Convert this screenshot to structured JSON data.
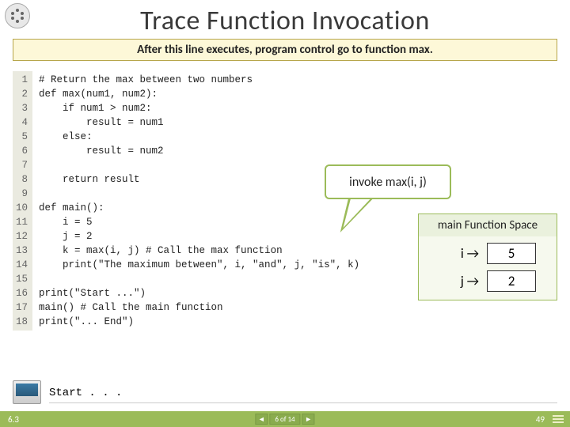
{
  "title": "Trace Function Invocation",
  "subtitle": "After this line executes, program control go to function max.",
  "line_numbers": "1\n2\n3\n4\n5\n6\n7\n8\n9\n10\n11\n12\n13\n14\n15\n16\n17\n18",
  "code": "# Return the max between two numbers\ndef max(num1, num2):\n    if num1 > num2:\n        result = num1\n    else:\n        result = num2\n\n    return result\n\ndef main():\n    i = 5\n    j = 2\n    k = max(i, j) # Call the max function\n    print(\"The maximum between\", i, \"and\", j, \"is\", k)\n\nprint(\"Start ...\")\nmain() # Call the main function\nprint(\"... End\")",
  "callout": "invoke max(i, j)",
  "space": {
    "title": "main Function Space",
    "vars": [
      {
        "name": "i →",
        "value": "5"
      },
      {
        "name": "j →",
        "value": "2"
      }
    ]
  },
  "output": "Start . . .",
  "footer": {
    "section": "6.3",
    "pager": "6 of 14",
    "page": "49"
  },
  "colors": {
    "accent": "#9bbb59",
    "subtitle_bg": "#fdf8d8",
    "subtitle_border": "#b7a64b",
    "space_bg": "#f6f9ee",
    "space_header_bg": "#eaf1dd"
  }
}
